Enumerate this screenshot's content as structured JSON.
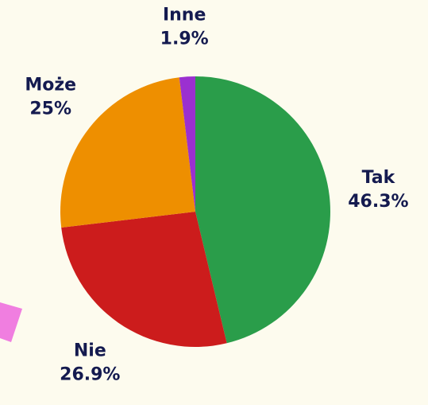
{
  "chart_data": {
    "type": "pie",
    "categories": [
      "Tak",
      "Nie",
      "Może",
      "Inne"
    ],
    "values": [
      46.3,
      26.9,
      25,
      1.9
    ],
    "value_labels": [
      "46.3%",
      "26.9%",
      "25%",
      "1.9%"
    ],
    "colors": [
      "#2a9d4a",
      "#cc1c1c",
      "#ee8f00",
      "#9b30d0"
    ]
  }
}
